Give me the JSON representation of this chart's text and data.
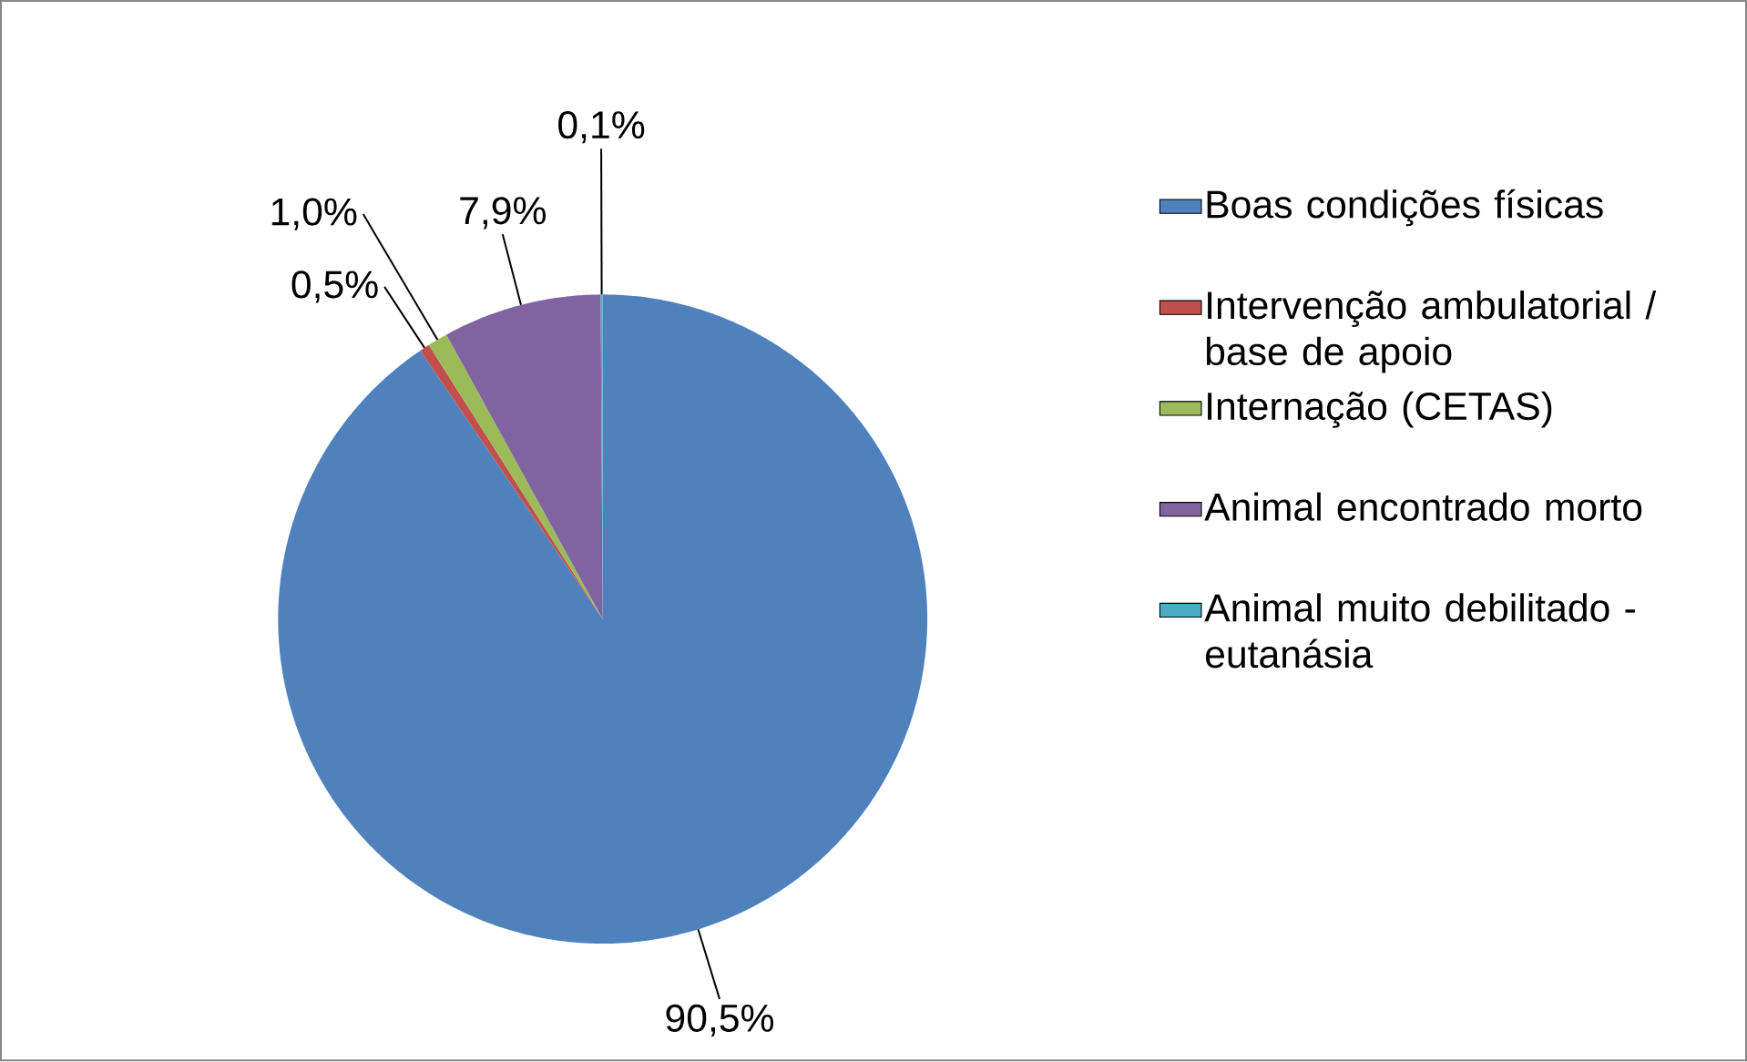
{
  "chart_data": {
    "type": "pie",
    "categories": [
      "Boas condições físicas",
      "Intervenção ambulatorial / base de apoio",
      "Internação (CETAS)",
      "Animal encontrado morto",
      "Animal muito debilitado - eutanásia"
    ],
    "values": [
      90.5,
      0.5,
      1.0,
      7.9,
      0.1
    ],
    "colors": [
      "#4f81bd",
      "#c0504d",
      "#9bbb59",
      "#8064a2",
      "#4bacc6"
    ],
    "value_labels": [
      "90,5%",
      "0,5%",
      "1,0%",
      "7,9%",
      "0,1%"
    ],
    "legend": "right"
  }
}
